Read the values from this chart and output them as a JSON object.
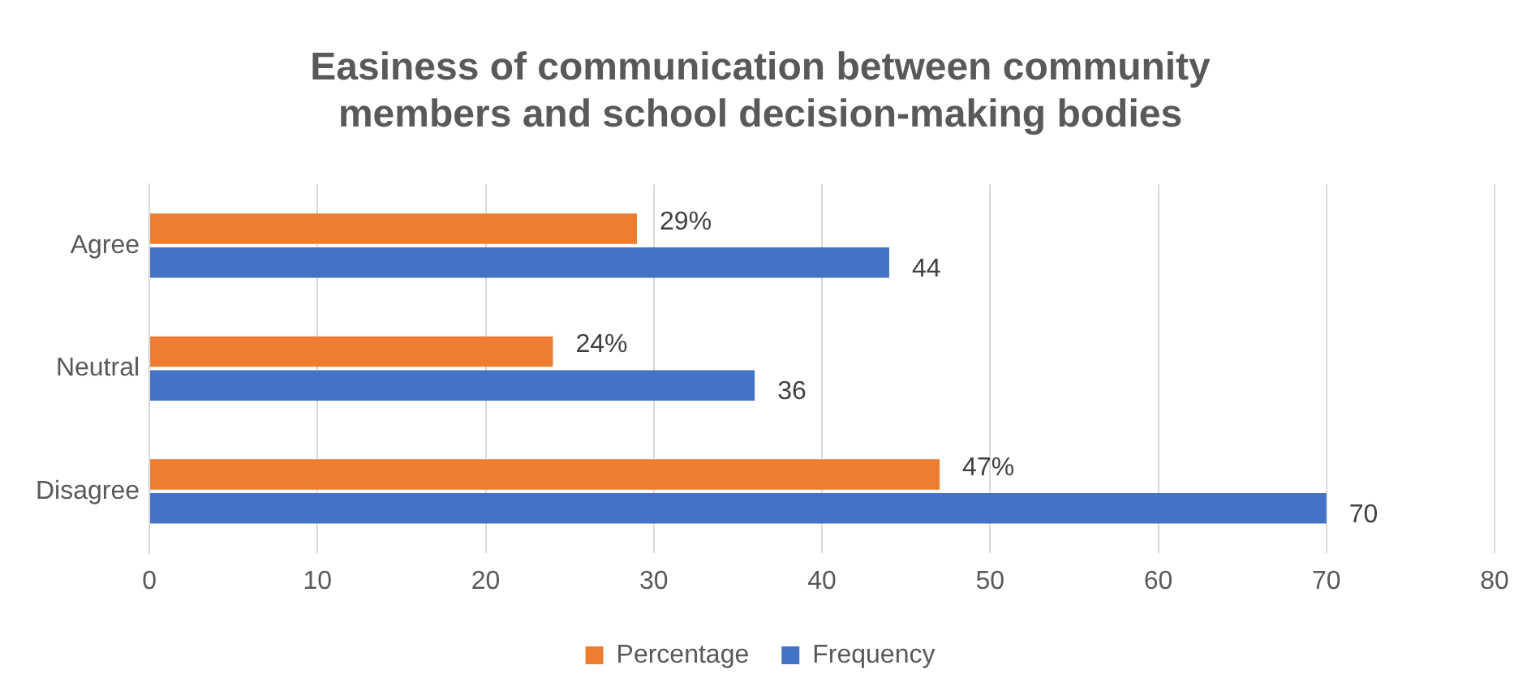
{
  "chart_data": {
    "type": "bar",
    "orientation": "horizontal",
    "title": "Easiness of communication between community members and school decision-making bodies",
    "categories": [
      "Agree",
      "Neutral",
      "Disagree"
    ],
    "series": [
      {
        "name": "Percentage",
        "color": "#ed7d31",
        "values": [
          29,
          24,
          47
        ],
        "value_labels": [
          "29%",
          "24%",
          "47%"
        ]
      },
      {
        "name": "Frequency",
        "color": "#4472c4",
        "values": [
          44,
          36,
          70
        ],
        "value_labels": [
          "44",
          "36",
          "70"
        ]
      }
    ],
    "xlim": [
      0,
      80
    ],
    "xticks": [
      0,
      10,
      20,
      30,
      40,
      50,
      60,
      70,
      80
    ],
    "grid": "x",
    "legend": "bottom"
  }
}
